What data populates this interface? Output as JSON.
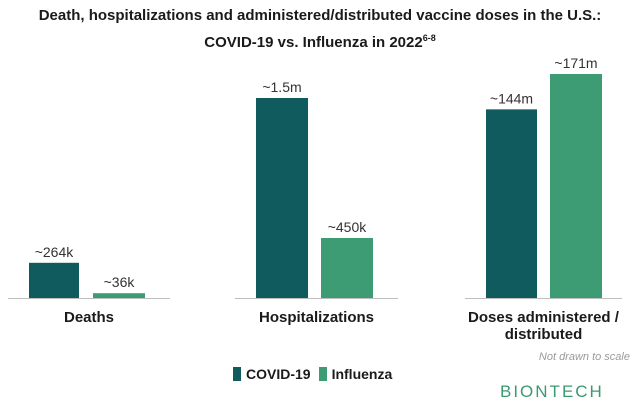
{
  "title_line1": "Death, hospitalizations and administered/distributed vaccine doses in the U.S.:",
  "title_line2": "COVID-19 vs. Influenza in 2022",
  "title_sup": "6-8",
  "note": "Not drawn to scale",
  "logo": "BIONTECH",
  "colors": {
    "covid": "#0f5b5e",
    "influenza": "#3e9c74",
    "axis": "#bdbdbd"
  },
  "chart_data": [
    {
      "type": "bar",
      "categories": [
        "Deaths"
      ],
      "series": [
        {
          "name": "COVID-19",
          "values": [
            264000
          ],
          "labels": [
            "~264k"
          ]
        },
        {
          "name": "Influenza",
          "values": [
            36000
          ],
          "labels": [
            "~36k"
          ]
        }
      ],
      "ylim": [
        0,
        1500000
      ]
    },
    {
      "type": "bar",
      "categories": [
        "Hospitalizations"
      ],
      "series": [
        {
          "name": "COVID-19",
          "values": [
            1500000
          ],
          "labels": [
            "~1.5m"
          ]
        },
        {
          "name": "Influenza",
          "values": [
            450000
          ],
          "labels": [
            "~450k"
          ]
        }
      ],
      "ylim": [
        0,
        1500000
      ]
    },
    {
      "type": "bar",
      "categories": [
        "Doses administered / distributed"
      ],
      "series": [
        {
          "name": "COVID-19",
          "values": [
            144000000
          ],
          "labels": [
            "~144m"
          ]
        },
        {
          "name": "Influenza",
          "values": [
            171000000
          ],
          "labels": [
            "~171m"
          ]
        }
      ],
      "ylim": [
        0,
        171000000
      ]
    }
  ],
  "category_labels": [
    [
      "Deaths"
    ],
    [
      "Hospitalizations"
    ],
    [
      "Doses administered /",
      "distributed"
    ]
  ]
}
